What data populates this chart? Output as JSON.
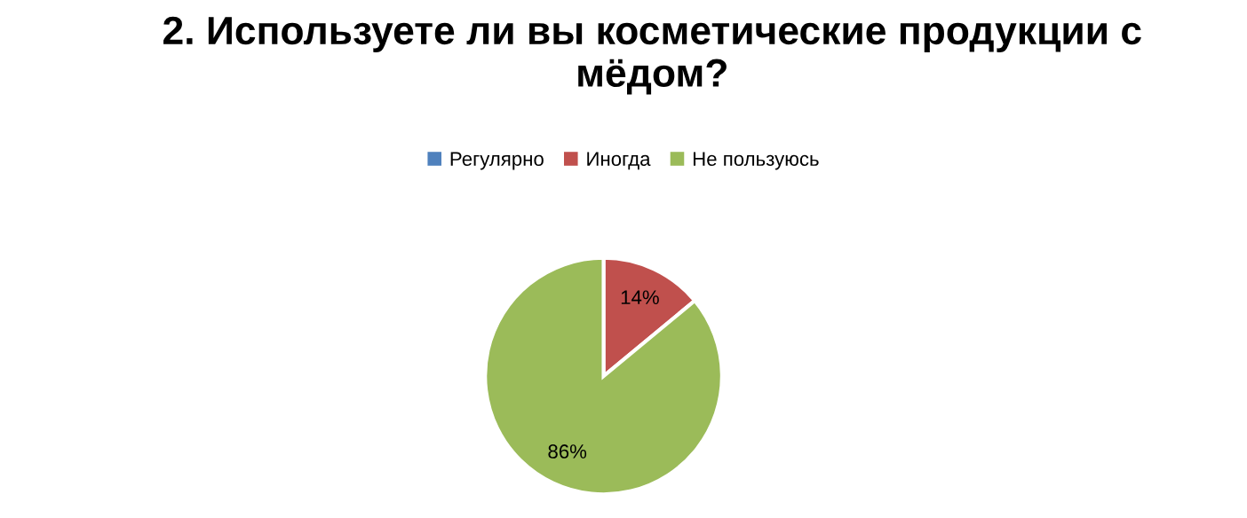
{
  "chart_data": {
    "type": "pie",
    "title": "2. Используете ли вы косметические продукции с мёдом?",
    "categories": [
      "Регулярно",
      "Иногда",
      "Не пользуюсь"
    ],
    "values": [
      0,
      14,
      86
    ],
    "colors": [
      "#4f81bd",
      "#c0504d",
      "#9bbb59"
    ],
    "value_labels": [
      null,
      "14%",
      "86%"
    ],
    "legend": "top"
  }
}
